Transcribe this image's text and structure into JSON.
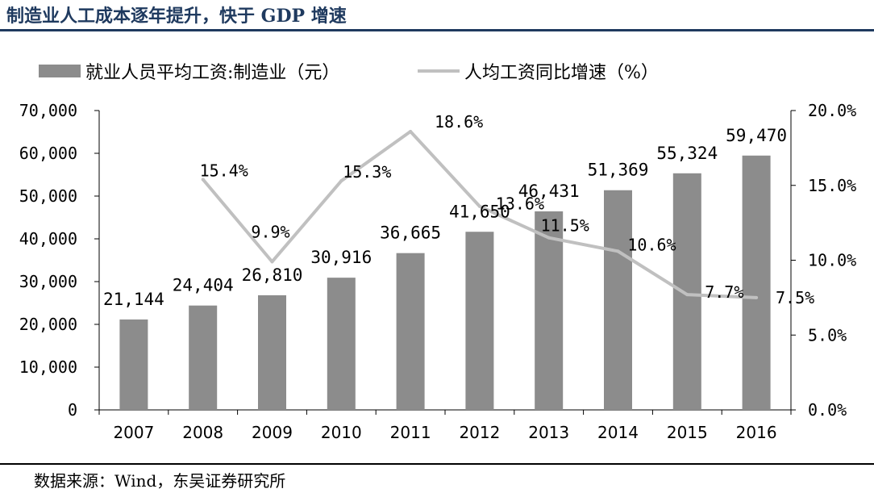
{
  "header": {
    "title": "制造业人工成本逐年提升，快于 GDP 增速"
  },
  "footer": {
    "source": "数据来源：Wind，东吴证券研究所"
  },
  "chart_data": {
    "type": "bar",
    "title": "制造业人工成本逐年提升，快于 GDP 增速",
    "categories": [
      "2007",
      "2008",
      "2009",
      "2010",
      "2011",
      "2012",
      "2013",
      "2014",
      "2015",
      "2016"
    ],
    "series": [
      {
        "name": "就业人员平均工资:制造业（元）",
        "type": "bar",
        "axis": "left",
        "color": "#8c8c8c",
        "values": [
          21144,
          24404,
          26810,
          30916,
          36665,
          41650,
          46431,
          51369,
          55324,
          59470
        ],
        "labels": [
          "21,144",
          "24,404",
          "26,810",
          "30,916",
          "36,665",
          "41,650",
          "46,431",
          "51,369",
          "55,324",
          "59,470"
        ]
      },
      {
        "name": "人均工资同比增速（%）",
        "type": "line",
        "axis": "right",
        "color": "#c0c0c0",
        "values": [
          null,
          15.4,
          9.9,
          15.3,
          18.6,
          13.6,
          11.5,
          10.6,
          7.7,
          7.5
        ],
        "labels": [
          "",
          "15.4%",
          "9.9%",
          "15.3%",
          "18.6%",
          "13.6%",
          "11.5%",
          "10.6%",
          "7.7%",
          "7.5%"
        ]
      }
    ],
    "left_axis": {
      "ylim": [
        0,
        70000
      ],
      "ticks": [
        0,
        10000,
        20000,
        30000,
        40000,
        50000,
        60000,
        70000
      ],
      "tick_labels": [
        "0",
        "10,000",
        "20,000",
        "30,000",
        "40,000",
        "50,000",
        "60,000",
        "70,000"
      ]
    },
    "right_axis": {
      "ylim": [
        0,
        20
      ],
      "ticks": [
        0,
        5,
        10,
        15,
        20
      ],
      "tick_labels": [
        "0.0%",
        "5.0%",
        "10.0%",
        "15.0%",
        "20.0%"
      ]
    },
    "legend_position": "top-left",
    "grid": false
  }
}
